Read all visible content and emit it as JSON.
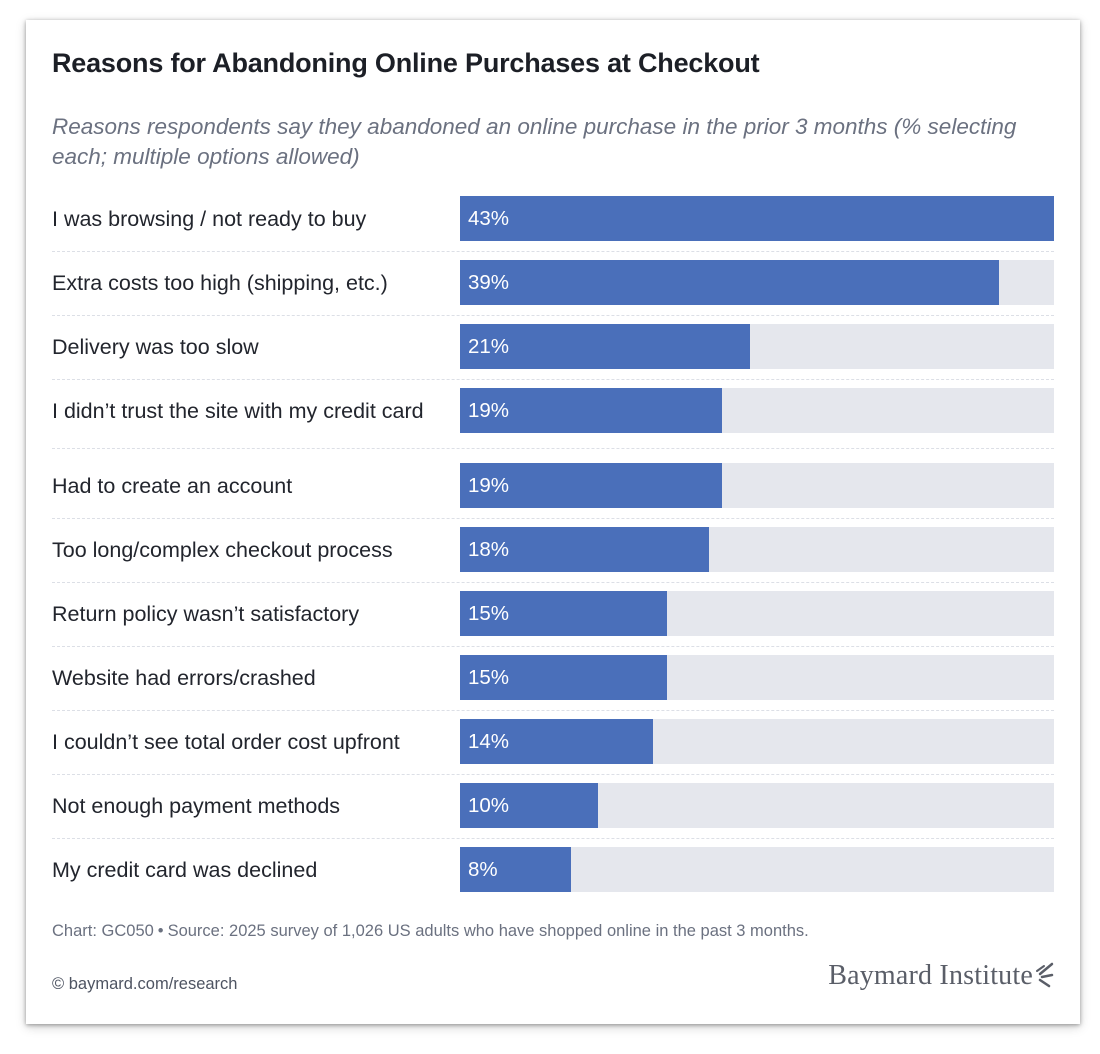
{
  "title": "Reasons for Abandoning Online Purchases at Checkout",
  "subtitle": "Reasons respondents say they abandoned an online purchase in the prior 3 months (% selecting each; multiple options allowed)",
  "colors": {
    "bar": "#4a6fba",
    "track": "#e5e7ed"
  },
  "chart_data": {
    "type": "bar",
    "orientation": "horizontal",
    "categories": [
      "I was browsing / not ready to buy",
      "Extra costs too high (shipping, etc.)",
      "Delivery was too slow",
      "I didn’t trust the site with my credit card",
      "Had to create an account",
      "Too long/complex checkout process",
      "Return policy wasn’t satisfactory",
      "Website had errors/crashed",
      "I couldn’t see total order cost upfront",
      "Not enough payment methods",
      "My credit card was declined"
    ],
    "values": [
      43,
      39,
      21,
      19,
      19,
      18,
      15,
      15,
      14,
      10,
      8
    ],
    "labels": [
      "43%",
      "39%",
      "21%",
      "19%",
      "19%",
      "18%",
      "15%",
      "15%",
      "14%",
      "10%",
      "8%"
    ],
    "xlim": [
      0,
      43
    ],
    "grid": false
  },
  "footer": {
    "chart_id": "Chart: GC050",
    "separator": "•",
    "source": "Source: 2025 survey of 1,026 US adults who have shopped online in the past 3 months.",
    "credit": "© baymard.com/research",
    "logo_text": "Baymard Institute",
    "logo_icon": "sparkle-icon"
  }
}
